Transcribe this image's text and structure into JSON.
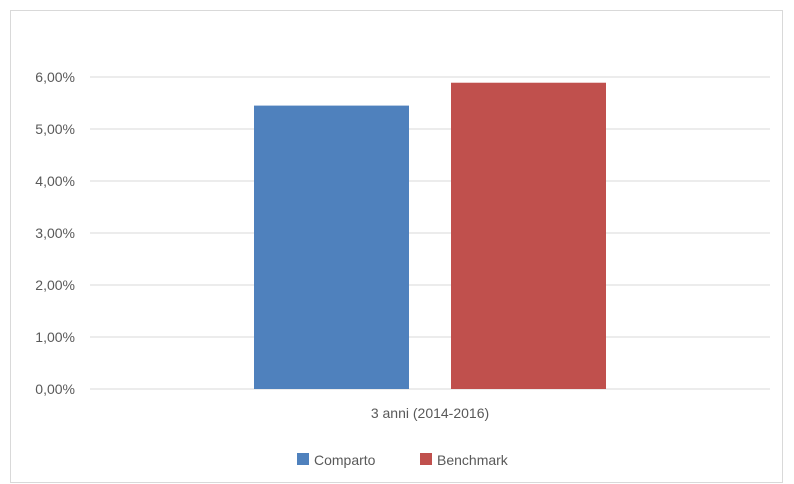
{
  "chart_data": {
    "type": "bar",
    "categories": [
      "3 anni (2014-2016)"
    ],
    "series": [
      {
        "name": "Comparto",
        "values": [
          5.45
        ],
        "color": "#4f81bd"
      },
      {
        "name": "Benchmark",
        "values": [
          5.89
        ],
        "color": "#c0504d"
      }
    ],
    "ylim": [
      0,
      6
    ],
    "yticks": [
      "0,00%",
      "1,00%",
      "2,00%",
      "3,00%",
      "4,00%",
      "5,00%",
      "6,00%"
    ],
    "ytick_values": [
      0,
      1,
      2,
      3,
      4,
      5,
      6
    ],
    "grid": true,
    "legend_position": "bottom"
  }
}
